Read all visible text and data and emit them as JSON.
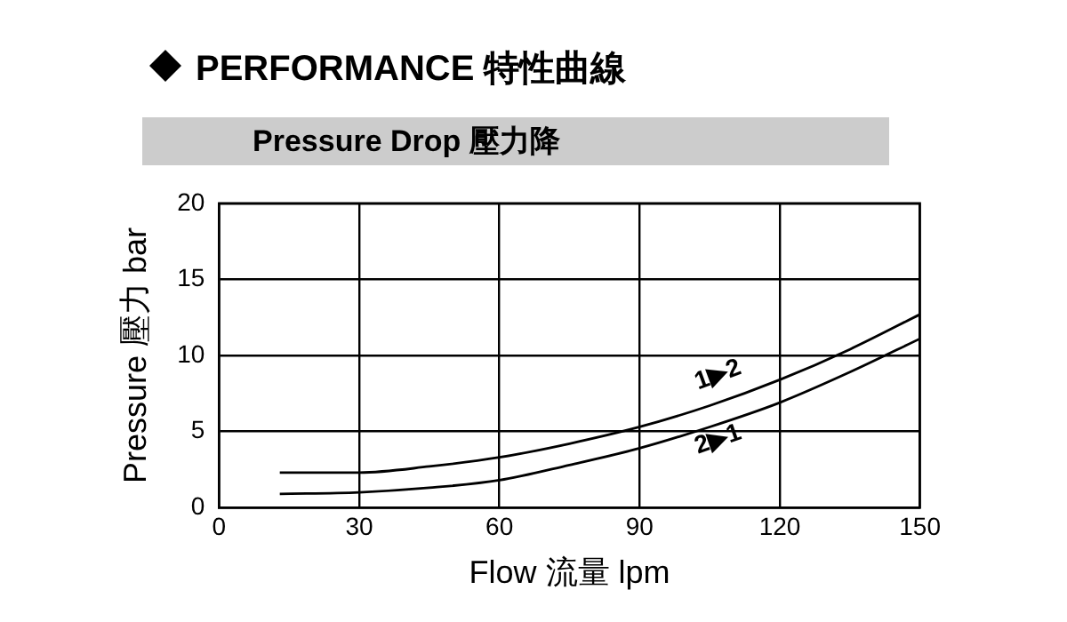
{
  "chart_data": {
    "type": "line",
    "title": "PERFORMANCE 特性曲線",
    "subtitle": "Pressure Drop 壓力降",
    "xlabel": "Flow 流量 lpm",
    "ylabel": "Pressure 壓力 bar",
    "x": [
      13,
      30,
      45,
      60,
      75,
      90,
      105,
      120,
      135,
      150
    ],
    "series": [
      {
        "name": "1▶2",
        "color": "#000000",
        "values": [
          2.3,
          2.3,
          2.7,
          3.3,
          4.2,
          5.3,
          6.7,
          8.4,
          10.4,
          12.7
        ]
      },
      {
        "name": "2▶1",
        "color": "#000000",
        "values": [
          0.9,
          1.0,
          1.3,
          1.8,
          2.8,
          3.9,
          5.3,
          6.9,
          8.9,
          11.1
        ]
      }
    ],
    "xlim": [
      0,
      150
    ],
    "xticks": [
      0,
      30,
      60,
      90,
      120,
      150
    ],
    "ylim": [
      0,
      20
    ],
    "yticks": [
      0,
      5,
      10,
      15,
      20
    ],
    "grid": true,
    "legend": false,
    "marker": "none",
    "line_style": "solid"
  }
}
